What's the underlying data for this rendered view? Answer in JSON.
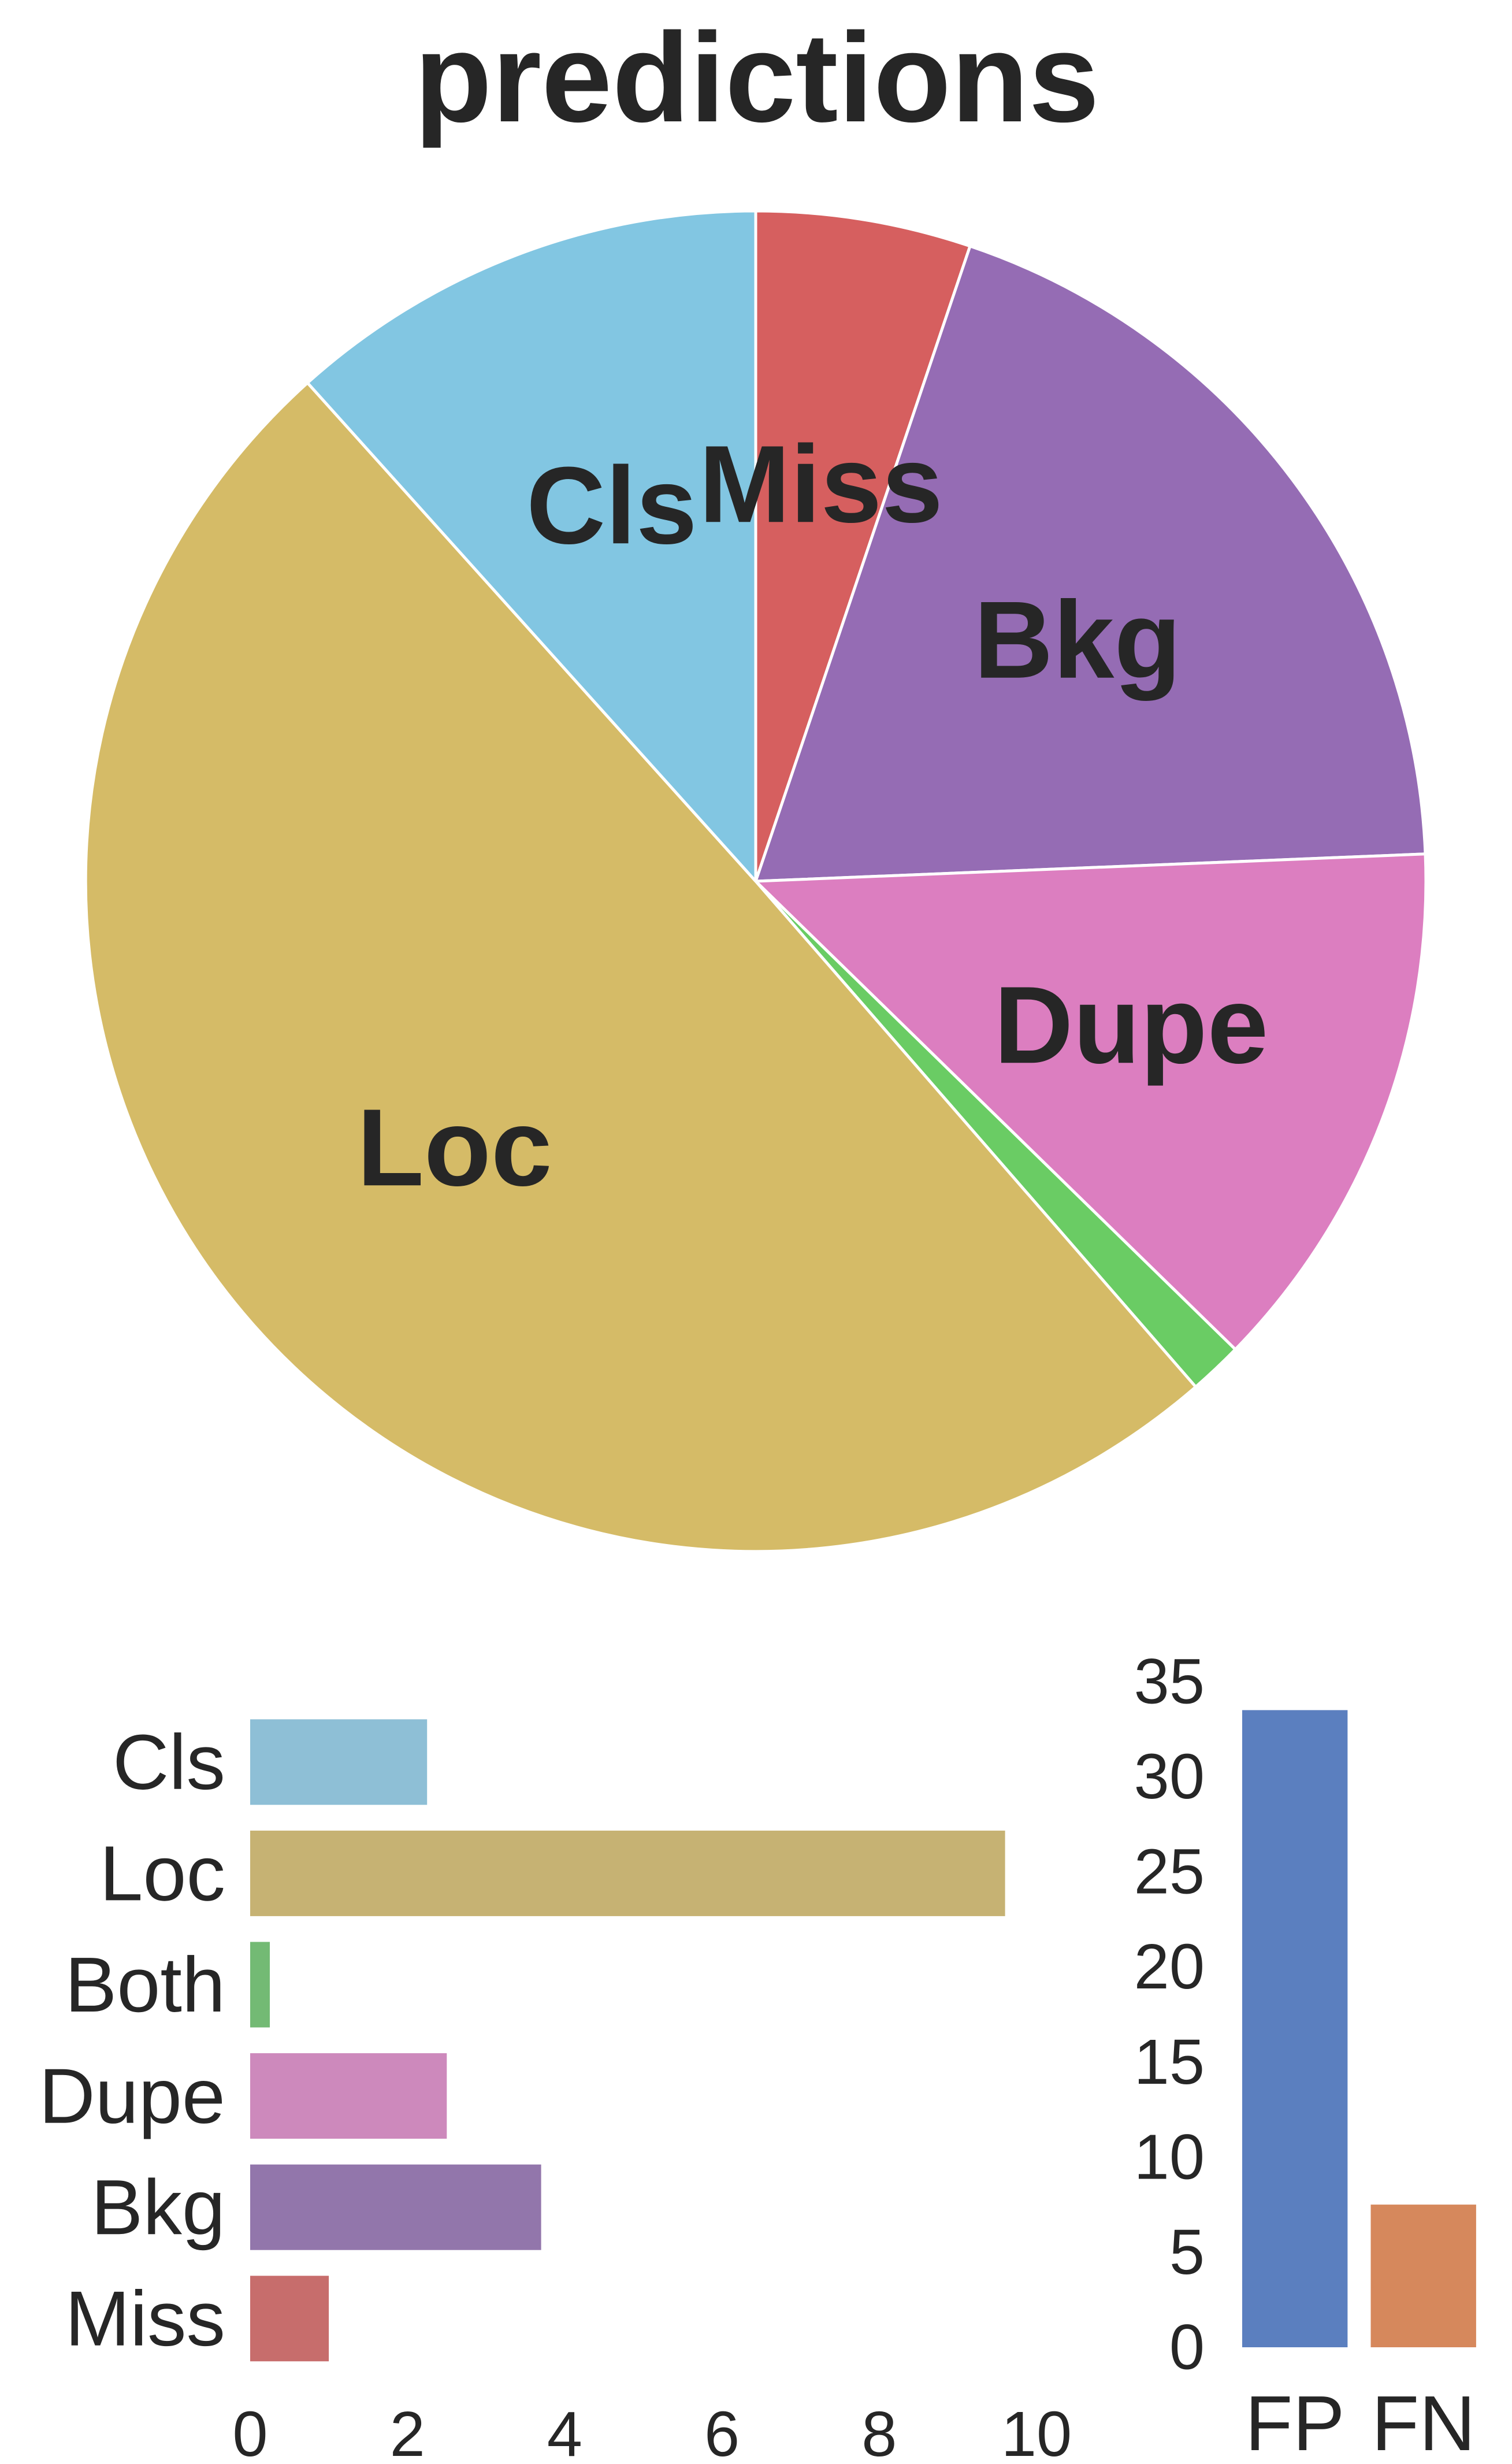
{
  "chart_data": [
    {
      "type": "pie",
      "title": "predictions",
      "categories": [
        "Miss",
        "Bkg",
        "Dupe",
        "Both",
        "Loc",
        "Cls"
      ],
      "values": [
        1.0,
        3.7,
        2.5,
        0.25,
        9.6,
        2.25
      ],
      "labels": [
        "Miss",
        "Bkg",
        "Dupe",
        "",
        "Loc",
        "Cls"
      ],
      "colors": [
        "#d65f5f",
        "#956cb4",
        "#dc7ec0",
        "#6acc64",
        "#d5bb67",
        "#82c6e2"
      ],
      "start": "top",
      "direction": "clockwise"
    },
    {
      "type": "bar",
      "orientation": "horizontal",
      "categories": [
        "Cls",
        "Loc",
        "Both",
        "Dupe",
        "Bkg",
        "Miss"
      ],
      "values": [
        2.25,
        9.6,
        0.25,
        2.5,
        3.7,
        1.0
      ],
      "colors": [
        "#8ebfd6",
        "#c6b273",
        "#73ba74",
        "#cd89bc",
        "#9276ab",
        "#c76d6c"
      ],
      "xlim": [
        0,
        10
      ],
      "xticks": [
        "0",
        "2",
        "4",
        "6",
        "8",
        "10"
      ],
      "grid": false
    },
    {
      "type": "bar",
      "orientation": "vertical",
      "categories": [
        "FP",
        "FN"
      ],
      "values": [
        33.5,
        7.5
      ],
      "colors": [
        "#5b7fbf",
        "#d6885c"
      ],
      "ylim": [
        0,
        35
      ],
      "yticks": [
        "0",
        "5",
        "10",
        "15",
        "20",
        "25",
        "30",
        "35"
      ],
      "grid": false
    }
  ]
}
